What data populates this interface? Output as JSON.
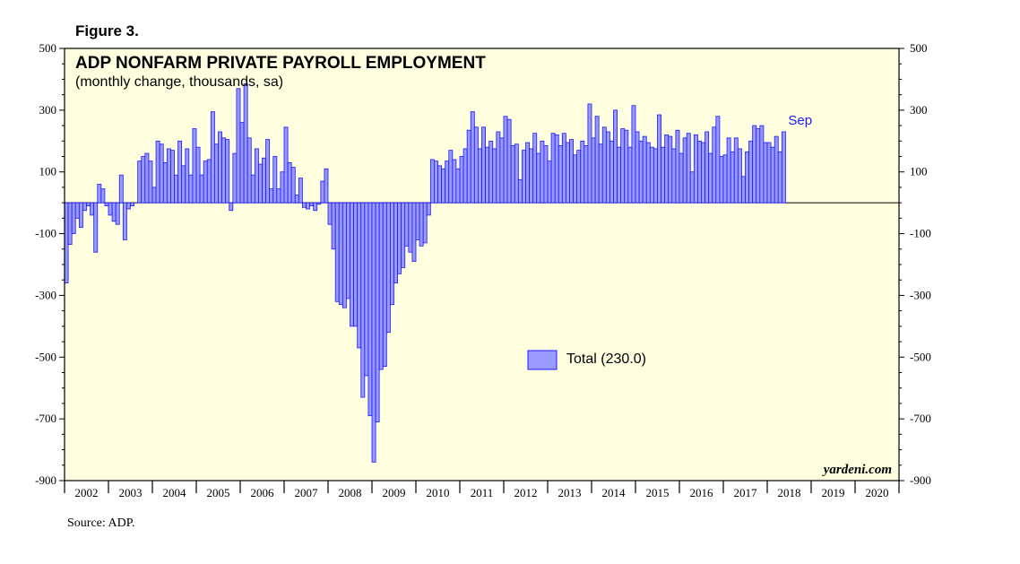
{
  "figure_label": "Figure 3.",
  "source": "Source: ADP.",
  "colors": {
    "plot_bg": "#ffffe0",
    "bar_fill": "#9999ff",
    "bar_stroke": "#1a1aff",
    "annotation": "#1a1aff"
  },
  "chart_data": {
    "type": "bar",
    "title": "ADP NONFARM PRIVATE PAYROLL EMPLOYMENT",
    "subtitle": "(monthly change, thousands, sa)",
    "ylim": [
      -900,
      500
    ],
    "yticks": [
      500,
      300,
      100,
      -100,
      -300,
      -500,
      -700,
      -900
    ],
    "ytick_labels": [
      "500",
      "300",
      "100",
      "-100",
      "-300",
      "-500",
      "-700",
      "-900"
    ],
    "years": [
      "2002",
      "2003",
      "2004",
      "2005",
      "2006",
      "2007",
      "2008",
      "2009",
      "2010",
      "2011",
      "2012",
      "2013",
      "2014",
      "2015",
      "2016",
      "2017",
      "2018",
      "2019",
      "2020"
    ],
    "x_start": "2002-01",
    "legend": {
      "label": "Total (230.0)",
      "position": "center"
    },
    "annotation": "Sep",
    "credit": "yardeni.com",
    "series": [
      {
        "name": "Total",
        "values": [
          -260,
          -135,
          -100,
          -50,
          -80,
          -25,
          -10,
          -40,
          -160,
          60,
          45,
          -10,
          -40,
          -60,
          -70,
          90,
          -120,
          -20,
          -10,
          0,
          135,
          150,
          160,
          135,
          50,
          200,
          190,
          130,
          175,
          170,
          90,
          200,
          120,
          175,
          90,
          240,
          180,
          90,
          135,
          140,
          295,
          190,
          230,
          210,
          205,
          -25,
          160,
          370,
          260,
          385,
          210,
          90,
          175,
          125,
          145,
          205,
          45,
          150,
          45,
          100,
          245,
          130,
          115,
          25,
          80,
          -15,
          -20,
          -10,
          -25,
          -5,
          70,
          110,
          -70,
          -150,
          -320,
          -330,
          -340,
          -310,
          -400,
          -400,
          -470,
          -630,
          -560,
          -690,
          -840,
          -710,
          -540,
          -530,
          -420,
          -330,
          -260,
          -230,
          -210,
          -140,
          -160,
          -190,
          -120,
          -140,
          -130,
          -40,
          140,
          135,
          120,
          110,
          135,
          170,
          140,
          110,
          150,
          175,
          235,
          295,
          245,
          175,
          245,
          180,
          200,
          175,
          230,
          210,
          280,
          270,
          185,
          190,
          75,
          170,
          195,
          175,
          225,
          160,
          200,
          185,
          135,
          225,
          220,
          185,
          225,
          195,
          205,
          155,
          170,
          200,
          185,
          320,
          210,
          280,
          190,
          245,
          230,
          200,
          300,
          180,
          240,
          235,
          180,
          315,
          230,
          200,
          215,
          195,
          180,
          175,
          285,
          180,
          220,
          215,
          175,
          235,
          160,
          210,
          225,
          100,
          220,
          200,
          195,
          230,
          160,
          245,
          280,
          150,
          155,
          210,
          165,
          210,
          175,
          85,
          165,
          200,
          250,
          240,
          250,
          195,
          195,
          180,
          215,
          165,
          230
        ]
      }
    ]
  }
}
